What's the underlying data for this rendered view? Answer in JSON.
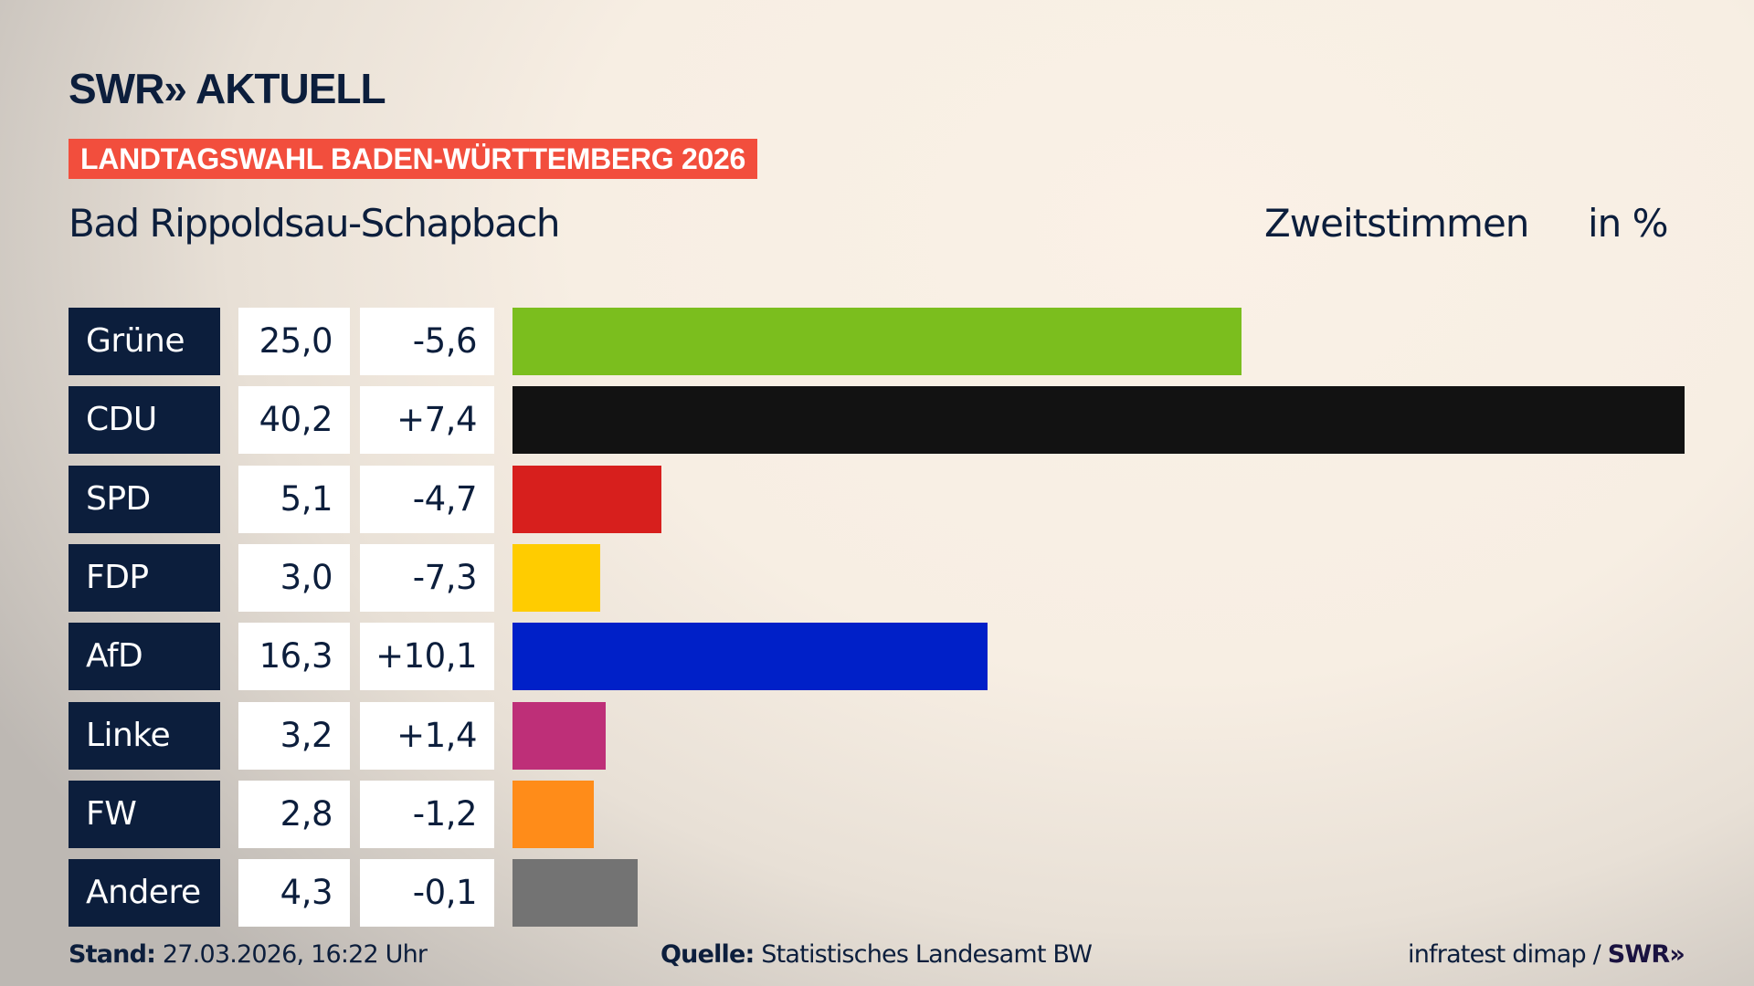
{
  "header": {
    "logo": "SWR» AKTUELL",
    "banner": "LANDTAGSWAHL BADEN-WÜRTTEMBERG 2026",
    "subtitle": "Bad Rippoldsau-Schapbach",
    "metric": "Zweitstimmen",
    "unit": "in %"
  },
  "chart_data": {
    "type": "bar",
    "orientation": "horizontal",
    "title": "LANDTAGSWAHL BADEN-WÜRTTEMBERG 2026",
    "subtitle": "Bad Rippoldsau-Schapbach",
    "categories": [
      "Grüne",
      "CDU",
      "SPD",
      "FDP",
      "AfD",
      "Linke",
      "FW",
      "Andere"
    ],
    "values": [
      25.0,
      40.2,
      5.1,
      3.0,
      16.3,
      3.2,
      2.8,
      4.3
    ],
    "value_labels": [
      "25,0",
      "40,2",
      "5,1",
      "3,0",
      "16,3",
      "3,2",
      "2,8",
      "4,3"
    ],
    "diff_labels": [
      "-5,6",
      "+7,4",
      "-4,7",
      "-7,3",
      "+10,1",
      "+1,4",
      "-1,2",
      "-0,1"
    ],
    "diffs": [
      -5.6,
      7.4,
      -4.7,
      -7.3,
      10.1,
      1.4,
      -1.2,
      -0.1
    ],
    "colors": [
      "#7bbe1e",
      "#121212",
      "#d71f1d",
      "#ffcc00",
      "#0020c8",
      "#be2f78",
      "#ff8c19",
      "#737373"
    ],
    "ylabel": "in %",
    "xlim": [
      0,
      40.2
    ]
  },
  "footer": {
    "stand_label": "Stand:",
    "stand_value": " 27.03.2026, 16:22 Uhr",
    "source_label": "Quelle:",
    "source_value": " Statistisches Landesamt BW",
    "credit": "infratest dimap / ",
    "credit_logo": "SWR»"
  }
}
